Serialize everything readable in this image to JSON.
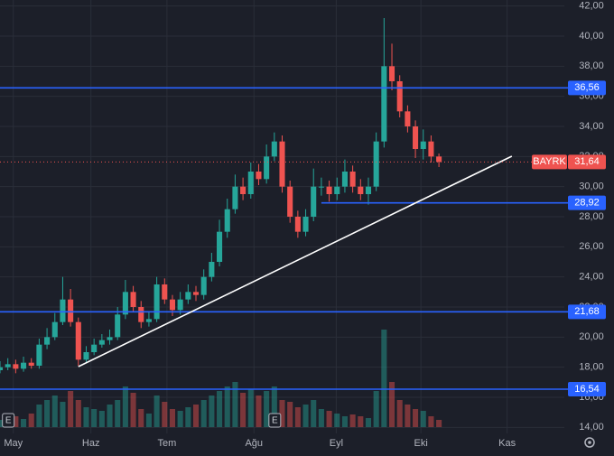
{
  "chart_data": {
    "type": "candlestick",
    "symbol": "BAYRK",
    "x": [
      0,
      1,
      2,
      3,
      4,
      5,
      6,
      7,
      8,
      9,
      10,
      11,
      12,
      13,
      14,
      15,
      16,
      17,
      18,
      19,
      20,
      21,
      22,
      23,
      24,
      25,
      26,
      27,
      28,
      29,
      30,
      31,
      32,
      33,
      34,
      35,
      36,
      37,
      38,
      39,
      40,
      41,
      42,
      43,
      44,
      45,
      46,
      47,
      48,
      49,
      50,
      51,
      52,
      53,
      54,
      55,
      56
    ],
    "open": [
      17.8,
      18.0,
      18.2,
      17.9,
      18.3,
      18.1,
      19.5,
      20.0,
      21.0,
      22.5,
      21.0,
      18.5,
      19.0,
      19.5,
      19.8,
      20.0,
      21.5,
      23.0,
      22.0,
      21.0,
      21.2,
      23.5,
      22.5,
      21.8,
      22.5,
      23.0,
      22.8,
      24.0,
      25.0,
      27.0,
      28.5,
      30.0,
      29.5,
      31.0,
      30.5,
      32.0,
      33.0,
      30.0,
      28.0,
      27.0,
      28.0,
      30.0,
      30.0,
      29.5,
      30.0,
      31.0,
      30.0,
      29.5,
      30.0,
      33.0,
      38.0,
      37.0,
      35.0,
      34.0,
      32.5,
      33.0,
      32.0
    ],
    "high": [
      18.4,
      18.6,
      18.5,
      18.7,
      18.6,
      19.9,
      20.6,
      21.6,
      24.0,
      23.2,
      21.3,
      19.4,
      19.9,
      20.2,
      20.5,
      22.0,
      23.8,
      23.4,
      22.4,
      21.7,
      24.0,
      23.9,
      22.8,
      23.0,
      23.5,
      23.4,
      24.5,
      25.6,
      27.8,
      29.2,
      30.8,
      30.6,
      31.6,
      31.5,
      32.8,
      33.6,
      33.4,
      30.4,
      28.4,
      28.5,
      31.2,
      30.6,
      30.4,
      30.6,
      31.8,
      31.4,
      30.5,
      30.6,
      33.6,
      41.2,
      39.5,
      37.4,
      35.4,
      34.4,
      33.8,
      33.4,
      32.2
    ],
    "low": [
      17.6,
      17.8,
      17.6,
      17.7,
      17.9,
      17.9,
      19.2,
      19.8,
      20.8,
      20.7,
      18.1,
      18.3,
      18.8,
      19.3,
      19.5,
      19.8,
      21.2,
      21.7,
      20.6,
      20.7,
      21.0,
      22.2,
      21.4,
      21.5,
      22.2,
      22.4,
      22.5,
      23.7,
      24.7,
      26.6,
      28.2,
      29.1,
      29.2,
      30.1,
      30.2,
      31.7,
      29.6,
      27.6,
      26.6,
      26.7,
      27.7,
      29.4,
      29.0,
      29.1,
      29.6,
      29.6,
      29.1,
      28.8,
      29.7,
      32.6,
      36.4,
      34.6,
      33.6,
      31.9,
      31.8,
      31.6,
      31.3
    ],
    "close": [
      18.0,
      18.2,
      17.9,
      18.3,
      18.1,
      19.5,
      20.0,
      21.0,
      22.5,
      21.0,
      18.5,
      19.0,
      19.5,
      19.8,
      20.0,
      21.5,
      23.0,
      22.0,
      21.0,
      21.2,
      23.5,
      22.5,
      21.8,
      22.5,
      23.0,
      22.8,
      24.0,
      25.0,
      27.0,
      28.5,
      30.0,
      29.5,
      31.0,
      30.5,
      32.0,
      33.0,
      30.0,
      28.0,
      27.0,
      28.0,
      30.0,
      30.0,
      29.5,
      30.0,
      31.0,
      30.0,
      29.5,
      30.0,
      33.0,
      38.0,
      37.0,
      35.0,
      34.0,
      32.5,
      33.0,
      32.0,
      31.64
    ],
    "volume": [
      8,
      10,
      12,
      9,
      15,
      25,
      30,
      35,
      28,
      40,
      30,
      22,
      20,
      18,
      25,
      30,
      45,
      38,
      20,
      15,
      35,
      28,
      20,
      18,
      22,
      25,
      30,
      35,
      40,
      45,
      50,
      38,
      42,
      35,
      40,
      45,
      30,
      28,
      22,
      25,
      30,
      20,
      18,
      15,
      12,
      14,
      12,
      10,
      40,
      108,
      50,
      30,
      25,
      20,
      18,
      12,
      8
    ],
    "up_color": "#26a69a",
    "down_color": "#ef5350",
    "xlim": [
      0,
      72
    ],
    "xticks": [
      {
        "value": 1.7,
        "label": "May"
      },
      {
        "value": 11.6,
        "label": "Haz"
      },
      {
        "value": 21.3,
        "label": "Tem"
      },
      {
        "value": 32.4,
        "label": "Ağu"
      },
      {
        "value": 42.9,
        "label": "Eyl"
      },
      {
        "value": 53.7,
        "label": "Eki"
      },
      {
        "value": 64.7,
        "label": "Kas"
      }
    ],
    "ylim": [
      13.6,
      42.4
    ],
    "yticks": [
      {
        "value": 14,
        "label": "14,00"
      },
      {
        "value": 16,
        "label": "16,00"
      },
      {
        "value": 18,
        "label": "18,00"
      },
      {
        "value": 20,
        "label": "20,00"
      },
      {
        "value": 22,
        "label": "22,00"
      },
      {
        "value": 24,
        "label": "24,00"
      },
      {
        "value": 26,
        "label": "26,00"
      },
      {
        "value": 28,
        "label": "28,00"
      },
      {
        "value": 30,
        "label": "30,00"
      },
      {
        "value": 32,
        "label": "32,00"
      },
      {
        "value": 34,
        "label": "34,00"
      },
      {
        "value": 36,
        "label": "36,00"
      },
      {
        "value": 38,
        "label": "38,00"
      },
      {
        "value": 40,
        "label": "40,00"
      },
      {
        "value": 42,
        "label": "42,00"
      }
    ],
    "grid": true,
    "levels": [
      {
        "value": 36.56,
        "label": "36,56"
      },
      {
        "value": 28.92,
        "label": "28,92",
        "from_x": 41
      },
      {
        "value": 21.68,
        "label": "21,68"
      },
      {
        "value": 16.54,
        "label": "16,54"
      }
    ],
    "level_color": "#2962ff",
    "trendline": {
      "x": [
        10,
        65.3
      ],
      "y": [
        18.04,
        32.02
      ],
      "color": "#ffffff"
    },
    "last_price": {
      "value": 31.64,
      "label": "31,64"
    },
    "events": [
      {
        "x": 1,
        "label": "E"
      },
      {
        "x": 35,
        "label": "E"
      }
    ]
  }
}
